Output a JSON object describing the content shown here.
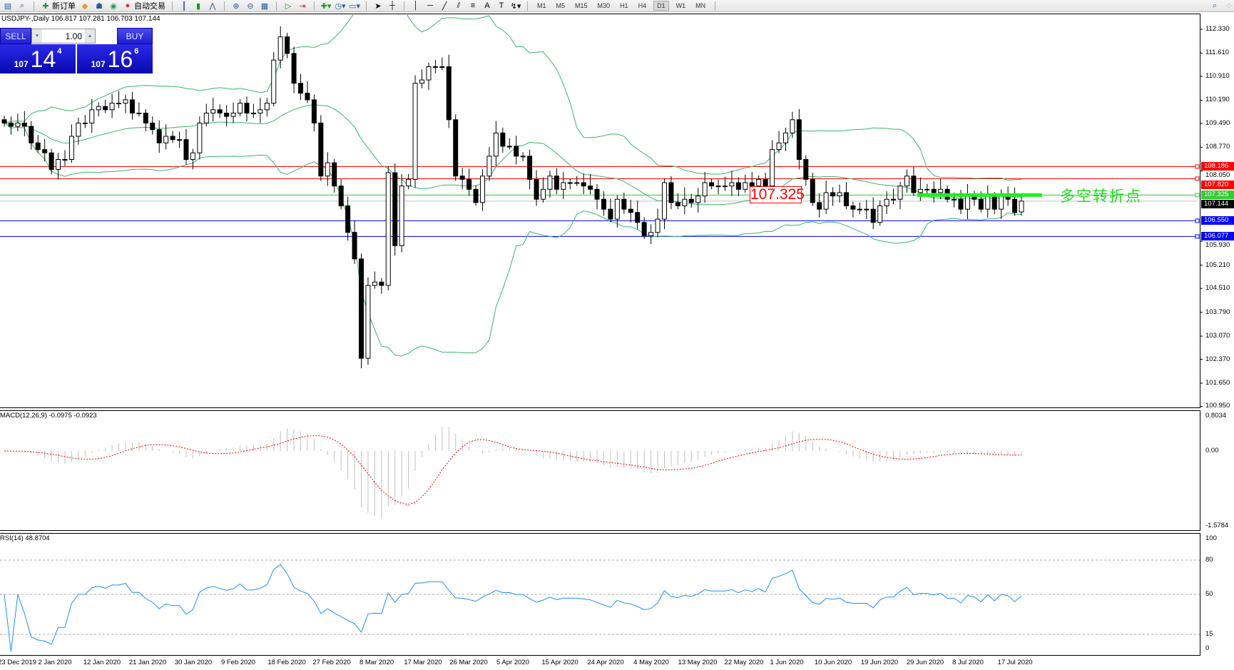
{
  "toolbar": {
    "new_order_label": "新订单",
    "autotrading_label": "自动交易",
    "timeframes": [
      "M1",
      "M5",
      "M15",
      "M30",
      "H1",
      "H4",
      "D1",
      "W1",
      "MN"
    ],
    "active_timeframe": "D1"
  },
  "chart": {
    "title": "USDJPY-,Daily  106.817 107.281 106.703 107.144",
    "last_ohlc": {
      "open": 106.817,
      "high": 107.281,
      "low": 106.703,
      "close": 107.144
    },
    "closes": [
      109.5,
      109.4,
      109.5,
      109.4,
      108.9,
      108.7,
      108.6,
      108.1,
      108.4,
      108.4,
      109.1,
      109.5,
      109.5,
      109.9,
      110.0,
      109.9,
      110.1,
      110.1,
      110.2,
      109.8,
      109.8,
      109.5,
      109.3,
      108.9,
      109.1,
      109.0,
      109.0,
      108.4,
      108.6,
      109.5,
      109.8,
      109.9,
      109.8,
      109.7,
      109.8,
      110.1,
      109.8,
      109.8,
      109.9,
      110.1,
      111.4,
      112.1,
      111.6,
      110.7,
      110.4,
      110.2,
      109.5,
      107.9,
      108.3,
      107.6,
      107.0,
      106.2,
      105.4,
      102.4,
      104.6,
      104.7,
      104.6,
      108.0,
      105.8,
      107.6,
      107.8,
      110.7,
      110.8,
      111.2,
      111.2,
      111.2,
      109.6,
      107.9,
      107.8,
      107.5,
      107.1,
      107.9,
      108.5,
      109.2,
      108.8,
      108.8,
      108.5,
      108.5,
      107.8,
      107.2,
      107.5,
      107.9,
      107.5,
      107.7,
      107.7,
      107.7,
      107.6,
      107.5,
      107.2,
      106.9,
      106.6,
      107.2,
      106.9,
      106.8,
      106.5,
      106.1,
      106.2,
      106.6,
      107.7,
      107.1,
      107.0,
      107.2,
      107.1,
      107.3,
      107.7,
      107.6,
      107.6,
      107.6,
      107.7,
      107.5,
      107.7,
      107.6,
      107.8,
      107.6,
      108.7,
      108.9,
      109.2,
      109.6,
      108.4,
      107.8,
      107.1,
      106.9,
      107.4,
      107.3,
      107.4,
      107.0,
      106.9,
      106.9,
      106.9,
      106.5,
      107.0,
      107.2,
      107.2,
      107.6,
      107.9,
      107.4,
      107.5,
      107.5,
      107.4,
      107.5,
      107.2,
      107.2,
      106.9,
      107.3,
      107.2,
      106.9,
      107.3,
      106.9,
      107.3,
      107.2,
      106.8,
      107.144
    ],
    "price_axis": [
      "112.330",
      "111.610",
      "110.910",
      "110.190",
      "109.490",
      "108.770",
      "108.050",
      "105.930",
      "105.210",
      "104.510",
      "103.790",
      "103.070",
      "102.370",
      "101.650",
      "100.950"
    ],
    "price_range": [
      100.95,
      112.33
    ],
    "levels": [
      {
        "price": "108.186",
        "color": "#ff0000"
      },
      {
        "price": "107.820",
        "color": "#ff0000"
      },
      {
        "price": "107.325",
        "color": "#33cc33"
      },
      {
        "price": "107.144",
        "color": "#000000",
        "line_color": "#c0c0c0"
      },
      {
        "price": "106.550",
        "color": "#0000ff"
      },
      {
        "price": "106.077",
        "color": "#0000ff"
      }
    ],
    "annotation_price": "107.325",
    "annotation_text": "多空转折点",
    "annotation_color": "#22dd22",
    "band_color": "#3cb371",
    "dates": [
      "23 Dec 2019",
      "2 Jan 2020",
      "12 Jan 2020",
      "21 Jan 2020",
      "30 Jan 2020",
      "9 Feb 2020",
      "18 Feb 2020",
      "27 Feb 2020",
      "8 Mar 2020",
      "17 Mar 2020",
      "26 Mar 2020",
      "5 Apr 2020",
      "15 Apr 2020",
      "24 Apr 2020",
      "4 May 2020",
      "13 May 2020",
      "22 May 2020",
      "1 Jun 2020",
      "10 Jun 2020",
      "19 Jun 2020",
      "29 Jun 2020",
      "8 Jul 2020",
      "17 Jul 2020"
    ]
  },
  "trade_panel": {
    "sell_label": "SELL",
    "buy_label": "BUY",
    "lot": "1.00",
    "sell_prefix": "107",
    "sell_big": "14",
    "sell_sup": "4",
    "buy_prefix": "107",
    "buy_big": "16",
    "buy_sup": "6"
  },
  "macd": {
    "title": "MACD(12,26,9) -0.0975 -0.0923",
    "axis": [
      "0.8034",
      "0.00",
      "-1.5784"
    ],
    "signal_color": "#ff0000",
    "hist_color": "#c0c0c0"
  },
  "rsi": {
    "title": "RSI(14) 48.8704",
    "axis": [
      "100",
      "80",
      "50",
      "15",
      "0"
    ],
    "line_color": "#1e90ff"
  }
}
